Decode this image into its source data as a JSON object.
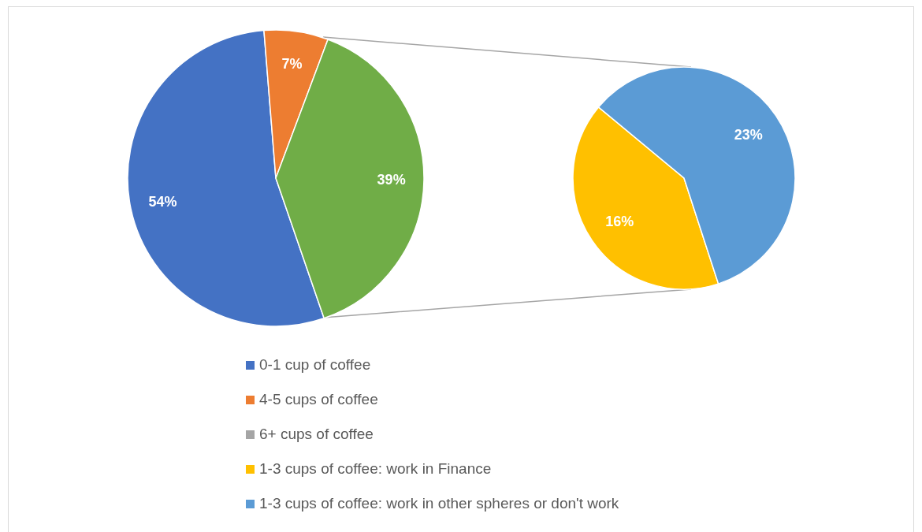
{
  "chart_data": [
    {
      "type": "pie",
      "categories": [
        "0-1 cup of coffee",
        "4-5 cups of coffee",
        "6+ cups of coffee",
        null
      ],
      "values": [
        54,
        7,
        0,
        39
      ],
      "colors": [
        "#4472c4",
        "#ed7d31",
        "#a5a5a5",
        "#70ad47"
      ],
      "value_labels": [
        "54%",
        "7%",
        null,
        "39%"
      ],
      "legend": "bottom"
    },
    {
      "type": "pie",
      "categories": [
        "1-3 cups of coffee: work in Finance",
        "1-3 cups of coffee: work in other spheres or don't work"
      ],
      "values": [
        16,
        23
      ],
      "colors": [
        "#ffc000",
        "#5b9bd5"
      ],
      "value_labels": [
        "16%",
        "23%"
      ],
      "legend": "bottom"
    }
  ]
}
